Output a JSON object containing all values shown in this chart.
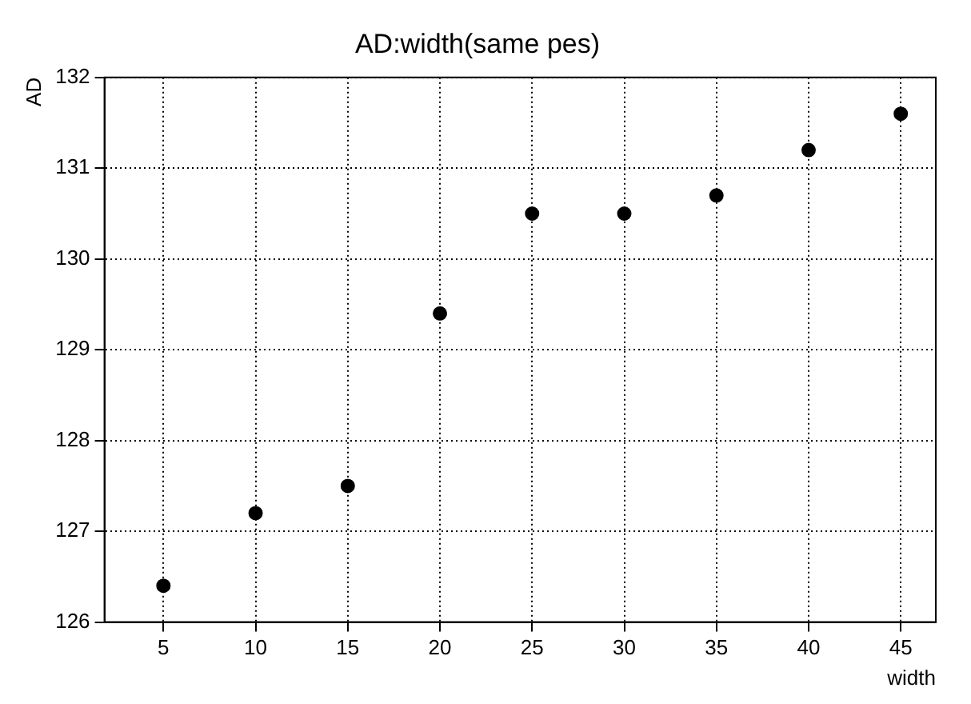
{
  "chart_data": {
    "type": "scatter",
    "title": "AD:width(same pes)",
    "xlabel": "width",
    "ylabel": "AD",
    "x": [
      5,
      10,
      15,
      20,
      25,
      30,
      35,
      40,
      45
    ],
    "series": [
      {
        "color": "#000000",
        "values": [
          126.4,
          127.2,
          127.5,
          129.4,
          130.5,
          130.5,
          130.7,
          131.2,
          131.6
        ]
      }
    ],
    "xlim": [
      1.8,
      46.9
    ],
    "xticks": [
      5,
      10,
      15,
      20,
      25,
      30,
      35,
      40,
      45
    ],
    "ylim": [
      126,
      132
    ],
    "yticks": [
      126,
      127,
      128,
      129,
      130,
      131,
      132
    ],
    "grid": true,
    "line_style": "dotted",
    "marker": "circle",
    "legend": false
  }
}
